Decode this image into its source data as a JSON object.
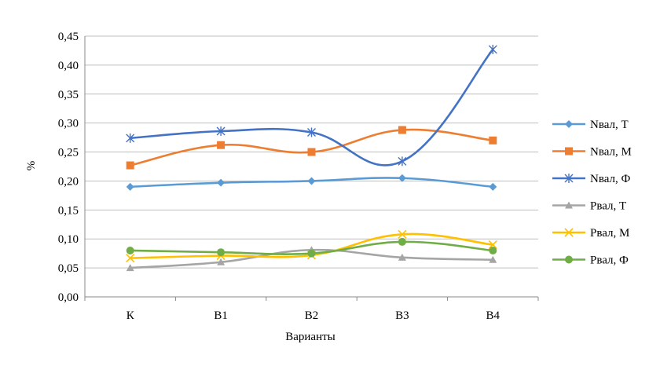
{
  "chart_data": {
    "type": "line",
    "xlabel": "Варианты",
    "ylabel": "%",
    "categories": [
      "К",
      "В1",
      "В2",
      "В3",
      "В4"
    ],
    "ylim": [
      0,
      0.45
    ],
    "yticks": [
      "0,00",
      "0,05",
      "0,10",
      "0,15",
      "0,20",
      "0,25",
      "0,30",
      "0,35",
      "0,40",
      "0,45"
    ],
    "grid": "horizontal",
    "legend": "right",
    "series": [
      {
        "name": "Nвал, Т",
        "color": "#5b9bd5",
        "marker": "diamond",
        "values": [
          0.19,
          0.197,
          0.2,
          0.205,
          0.19
        ]
      },
      {
        "name": "Nвал, М",
        "color": "#ed7d31",
        "marker": "square",
        "values": [
          0.227,
          0.262,
          0.25,
          0.288,
          0.27
        ]
      },
      {
        "name": "Nвал, Ф",
        "color": "#4472c4",
        "marker": "asterisk",
        "values": [
          0.274,
          0.286,
          0.284,
          0.234,
          0.427
        ]
      },
      {
        "name": "Рвал, Т",
        "color": "#a5a5a5",
        "marker": "triangle",
        "values": [
          0.05,
          0.06,
          0.081,
          0.068,
          0.064
        ]
      },
      {
        "name": "Рвал, М",
        "color": "#ffc000",
        "marker": "x",
        "values": [
          0.067,
          0.071,
          0.072,
          0.108,
          0.09
        ]
      },
      {
        "name": "Рвал, Ф",
        "color": "#70ad47",
        "marker": "circle",
        "values": [
          0.08,
          0.077,
          0.075,
          0.095,
          0.08
        ]
      }
    ]
  }
}
